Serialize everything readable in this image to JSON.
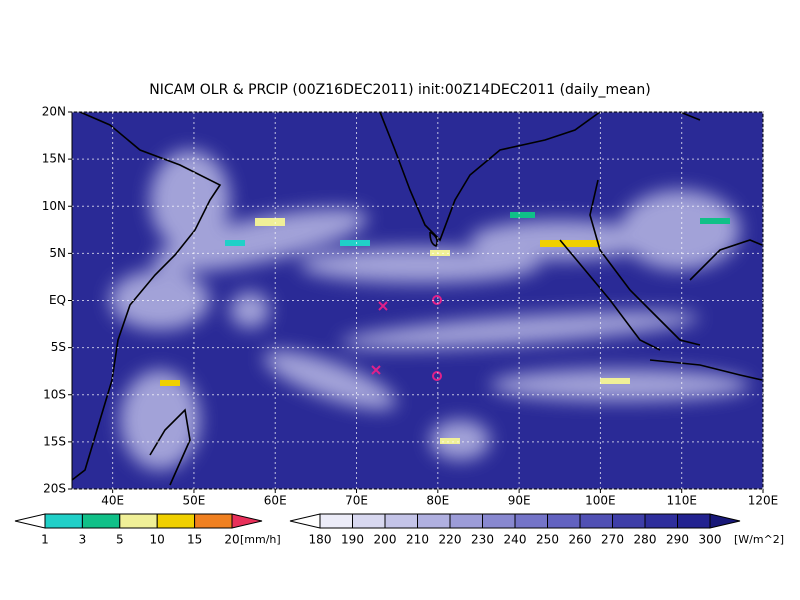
{
  "title": "NICAM OLR & PRCIP (00Z16DEC2011) init:00Z14DEC2011 (daily_mean)",
  "map": {
    "xlim": [
      35,
      120
    ],
    "ylim": [
      -20,
      20
    ],
    "xticks": [
      {
        "value": 40,
        "label": "40E"
      },
      {
        "value": 50,
        "label": "50E"
      },
      {
        "value": 60,
        "label": "60E"
      },
      {
        "value": 70,
        "label": "70E"
      },
      {
        "value": 80,
        "label": "80E"
      },
      {
        "value": 90,
        "label": "90E"
      },
      {
        "value": 100,
        "label": "100E"
      },
      {
        "value": 110,
        "label": "110E"
      },
      {
        "value": 120,
        "label": "120E"
      }
    ],
    "yticks": [
      {
        "value": 20,
        "label": "20N"
      },
      {
        "value": 15,
        "label": "15N"
      },
      {
        "value": 10,
        "label": "10N"
      },
      {
        "value": 5,
        "label": "5N"
      },
      {
        "value": 0,
        "label": "EQ"
      },
      {
        "value": -5,
        "label": "5S"
      },
      {
        "value": -10,
        "label": "10S"
      },
      {
        "value": -15,
        "label": "15S"
      },
      {
        "value": -20,
        "label": "20S"
      }
    ],
    "grid": true
  },
  "legends": [
    {
      "levels": [
        1,
        3,
        5,
        10,
        15,
        20
      ],
      "unit": "[mm/h]",
      "under_color": "#ffffff",
      "over_color": "#e8305a",
      "colors": [
        "#20d0c8",
        "#10c088",
        "#f0f098",
        "#f0d000",
        "#f08020"
      ]
    },
    {
      "levels": [
        180,
        190,
        200,
        210,
        220,
        230,
        240,
        250,
        260,
        270,
        280,
        290,
        300
      ],
      "unit": "[W/m^2]",
      "under_color": "#ffffff",
      "over_color": "#181878",
      "colors": [
        "#ececf8",
        "#d8d8f0",
        "#c4c4e8",
        "#b0b0e0",
        "#9c9cd8",
        "#8888d0",
        "#7474c8",
        "#6262c0",
        "#5050b4",
        "#3e3ea8",
        "#2e2e9c",
        "#222290"
      ]
    }
  ]
}
